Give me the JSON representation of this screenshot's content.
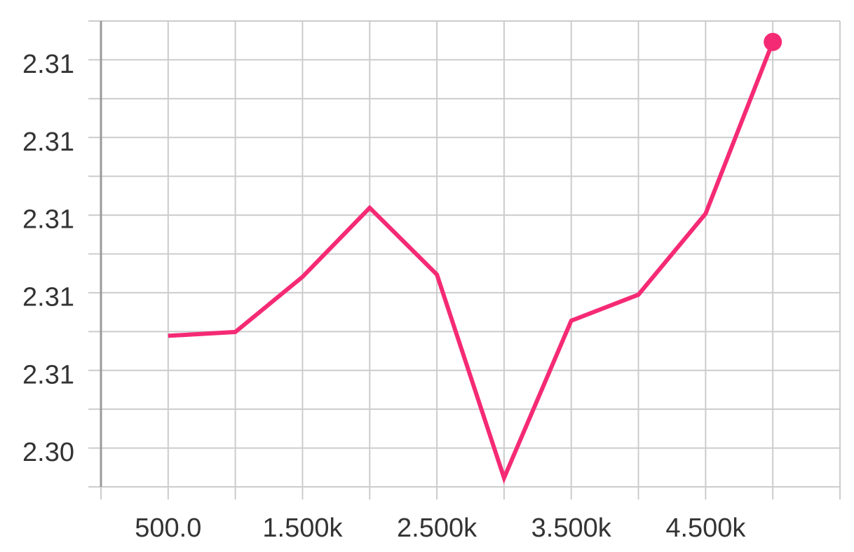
{
  "chart_data": {
    "type": "line",
    "title": "",
    "xlabel": "",
    "ylabel": "",
    "x_axis": {
      "range": [
        0,
        5500
      ],
      "grid_step": 500,
      "tick_values": [
        500,
        1500,
        2500,
        3500,
        4500
      ],
      "tick_labels": [
        "500.0",
        "1.500k",
        "2.500k",
        "3.500k",
        "4.500k"
      ]
    },
    "y_axis": {
      "range": [
        2.3041,
        2.3161
      ],
      "grid_step": 0.001,
      "tick_values": [
        2.305,
        2.307,
        2.309,
        2.311,
        2.313,
        2.315
      ],
      "tick_labels": [
        "2.30",
        "2.31",
        "2.31",
        "2.31",
        "2.31",
        "2.31"
      ]
    },
    "grid": true,
    "series": [
      {
        "color": "#f52a75",
        "x": [
          500,
          1000,
          1500,
          2000,
          2500,
          3000,
          3500,
          4000,
          4500,
          5000
        ],
        "y": [
          2.30799,
          2.30809,
          2.30951,
          2.31129,
          2.30957,
          2.30433,
          2.30838,
          2.30905,
          2.31114,
          2.31556
        ]
      }
    ],
    "last_point_marker": true
  }
}
